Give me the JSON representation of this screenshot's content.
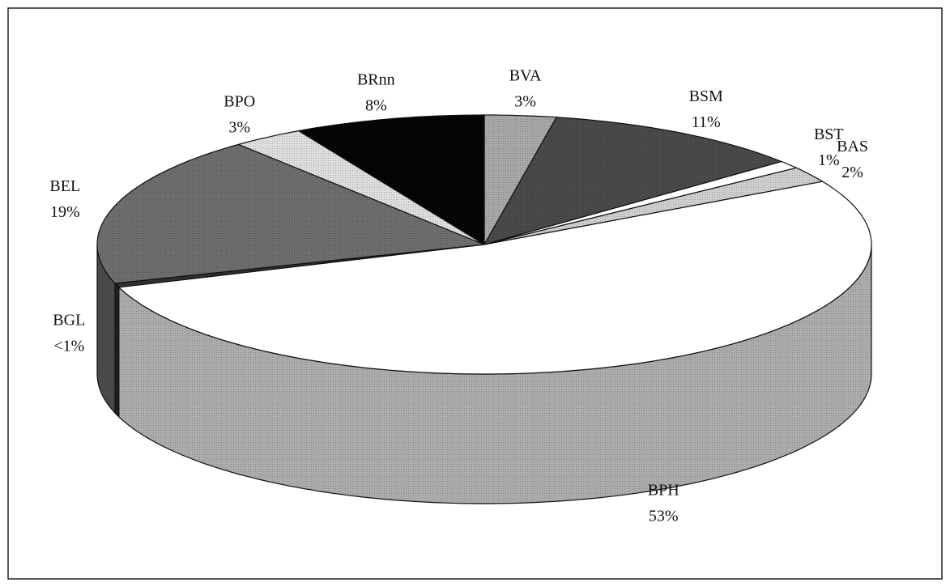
{
  "chart_data": {
    "type": "pie3d",
    "categories": [
      "BVA",
      "BSM",
      "BST",
      "BAS",
      "BPH",
      "BGL",
      "BEL",
      "BPO",
      "BRnn"
    ],
    "values": [
      3,
      11,
      1,
      2,
      53,
      0.5,
      19,
      3,
      8
    ],
    "value_labels": [
      "3%",
      "11%",
      "1%",
      "2%",
      "53%",
      "<1%",
      "19%",
      "3%",
      "8%"
    ],
    "colors": [
      "#a8a8a8",
      "#4a4a4a",
      "#ffffff",
      "#cfcfcf",
      "#ffffff",
      "#333333",
      "#6e6e6e",
      "#dedede",
      "#050505"
    ],
    "start_angle": -90,
    "direction": "clockwise"
  }
}
